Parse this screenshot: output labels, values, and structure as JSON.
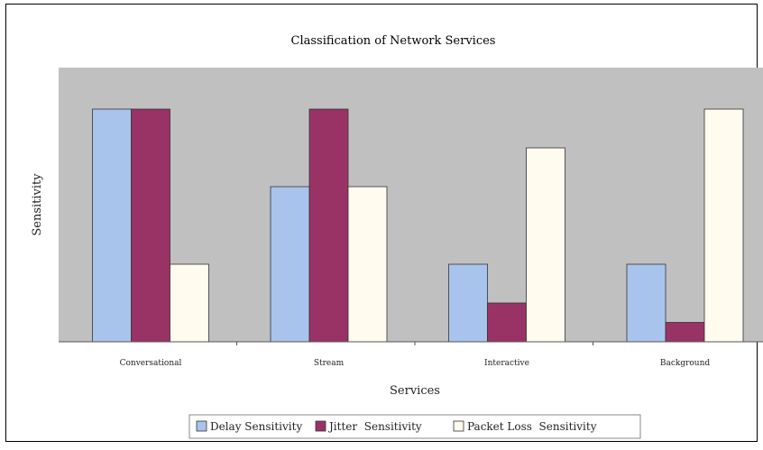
{
  "chart_data": {
    "type": "bar",
    "title": "Classification of Network Services",
    "xlabel": "Services",
    "ylabel": "Sensitivity",
    "categories": [
      "Conversational",
      "Stream",
      "Interactive",
      "Background"
    ],
    "series": [
      {
        "name": "Delay Sensitivity",
        "values": [
          6,
          4,
          2,
          2
        ]
      },
      {
        "name": "Jitter  Sensitivity",
        "values": [
          6,
          6,
          1,
          0.5
        ]
      },
      {
        "name": "Packet Loss  Sensitivity",
        "values": [
          2,
          4,
          5,
          6
        ]
      }
    ],
    "ylim": [
      0,
      7
    ],
    "grid": false,
    "legend_position": "bottom"
  },
  "colors": {
    "plot_background": "#c0c0c0",
    "series": [
      "#a9c4ec",
      "#993366",
      "#fffbef"
    ]
  }
}
